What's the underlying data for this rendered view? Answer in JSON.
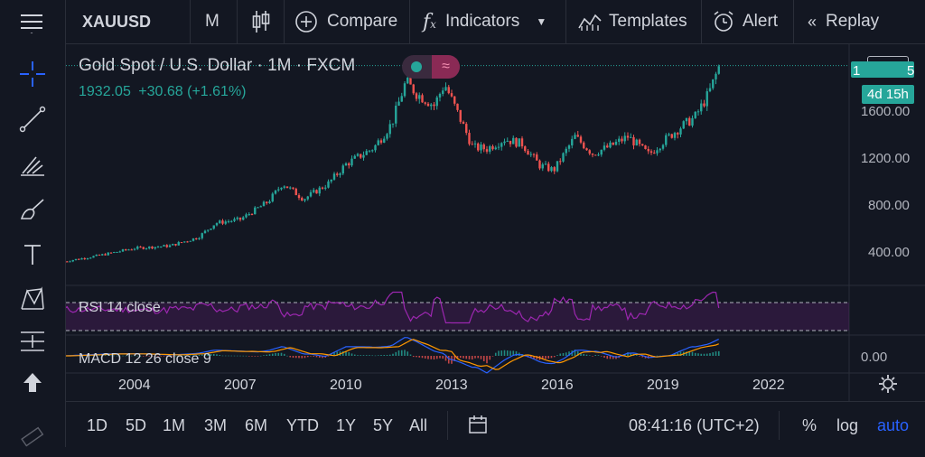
{
  "toolbar": {
    "symbol": "XAUUSD",
    "interval": "M",
    "compare": "Compare",
    "indicators": "Indicators",
    "templates": "Templates",
    "alert": "Alert",
    "replay": "Replay"
  },
  "legend": {
    "title": "Gold Spot / U.S. Dollar · 1M · FXCM",
    "price": "1932.05",
    "change": "+30.68 (+1.61%)"
  },
  "price_axis": {
    "currency": "USD",
    "last_price_partial": "1",
    "last_price_tail": "5",
    "countdown": "4d 15h",
    "ticks": [
      "1600.00",
      "1200.00",
      "800.00",
      "400.00"
    ]
  },
  "indicators": {
    "rsi_label": "RSI 14 close",
    "macd_label": "MACD 12 26 close 9",
    "macd_axis": "0.00"
  },
  "time_axis": {
    "ticks": [
      "2004",
      "2007",
      "2010",
      "2013",
      "2016",
      "2019",
      "2022"
    ]
  },
  "bottom_bar": {
    "ranges": [
      "1D",
      "5D",
      "1M",
      "3M",
      "6M",
      "YTD",
      "1Y",
      "5Y",
      "All"
    ],
    "time": "08:41:16 (UTC+2)",
    "percent": "%",
    "log": "log",
    "auto": "auto"
  },
  "colors": {
    "up": "#26a69a",
    "down": "#ef5350",
    "rsi": "#9c27b0",
    "macd": "#2962ff",
    "signal": "#ff9800",
    "accent": "#2962ff"
  },
  "chart_data": {
    "type": "line",
    "title": "Gold Spot / U.S. Dollar · 1M · FXCM",
    "ylim": [
      100,
      2050
    ],
    "x": [
      2002.0,
      2003.0,
      2004.0,
      2005.0,
      2005.8,
      2006.3,
      2007.0,
      2007.8,
      2008.2,
      2008.8,
      2009.5,
      2010.0,
      2010.8,
      2011.3,
      2011.7,
      2012.0,
      2012.5,
      2012.8,
      2013.3,
      2013.6,
      2014.0,
      2014.5,
      2015.0,
      2015.5,
      2015.9,
      2016.5,
      2017.0,
      2017.5,
      2018.0,
      2018.6,
      2019.0,
      2019.5,
      2019.9,
      2020.3,
      2020.6
    ],
    "series": [
      {
        "values": [
          300,
          350,
          410,
          430,
          500,
          620,
          650,
          800,
          950,
          820,
          950,
          1110,
          1250,
          1450,
          1800,
          1700,
          1600,
          1780,
          1450,
          1250,
          1240,
          1320,
          1280,
          1100,
          1060,
          1340,
          1200,
          1260,
          1340,
          1190,
          1300,
          1420,
          1500,
          1700,
          1932
        ]
      }
    ]
  }
}
